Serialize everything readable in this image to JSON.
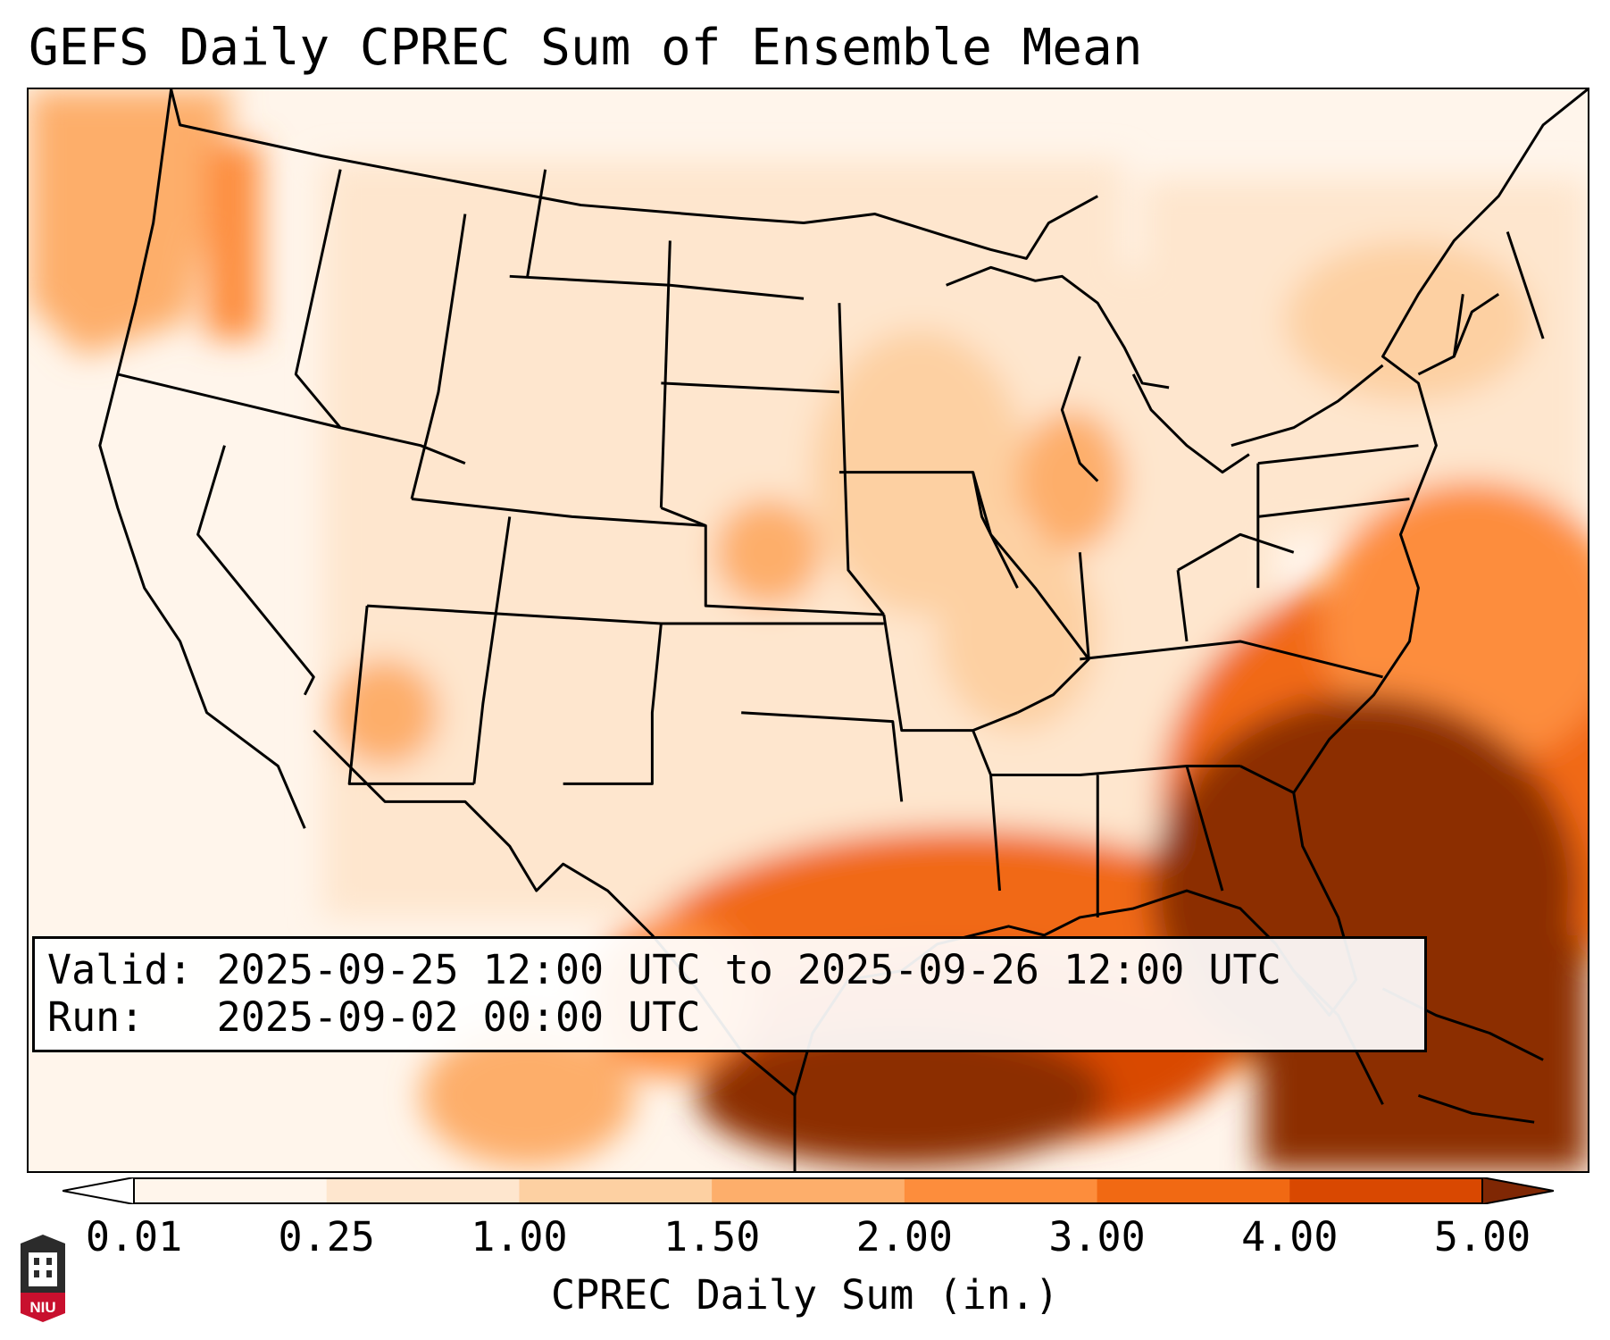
{
  "title": "GEFS Daily CPREC Sum of Ensemble Mean",
  "info_box": {
    "valid_label": "Valid:",
    "valid_value": "2025-09-25 12:00 UTC to 2025-09-26 12:00 UTC",
    "run_label": "Run:",
    "run_value": "2025-09-02 00:00 UTC"
  },
  "colorbar": {
    "label": "CPREC Daily Sum (in.)",
    "ticks": [
      "0.01",
      "0.25",
      "1.00",
      "1.50",
      "2.00",
      "3.00",
      "4.00",
      "5.00"
    ],
    "colors": [
      "#fff5eb",
      "#fee6ce",
      "#fdd0a2",
      "#fdae6b",
      "#fd8d3c",
      "#f16913",
      "#d94801",
      "#8c2d04"
    ],
    "under_color": "#ffffff",
    "over_color": "#7f2704"
  },
  "logo": {
    "text": "NIU",
    "name": "niu-logo"
  },
  "map": {
    "region": "contiguous-united-states",
    "field": "CPREC daily sum",
    "heaviest_area": "Gulf of Mexico / Southeast coast",
    "colors": {
      "state_border": "#000000",
      "background": "#ffffff"
    }
  }
}
